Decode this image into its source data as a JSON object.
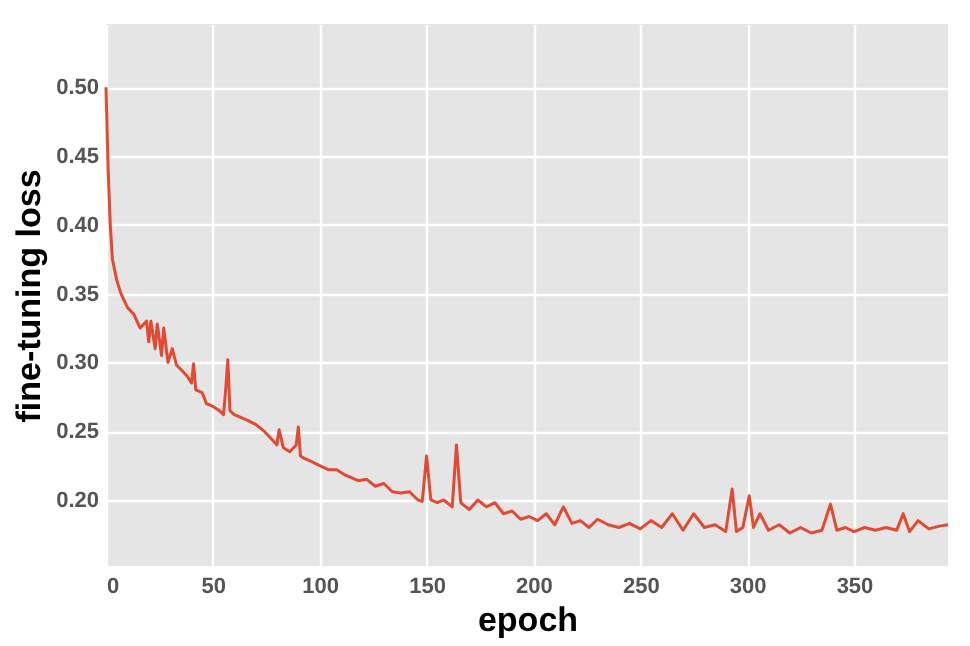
{
  "chart_data": {
    "type": "line",
    "xlabel": "epoch",
    "ylabel": "fine-tuning loss",
    "x": [
      0,
      1,
      2,
      3,
      5,
      7,
      10,
      13,
      16,
      19,
      20,
      21,
      23,
      24,
      26,
      27,
      29,
      31,
      33,
      35,
      38,
      40,
      41,
      42,
      45,
      47,
      50,
      53,
      55,
      56,
      57,
      58,
      60,
      63,
      66,
      70,
      74,
      77,
      80,
      81,
      83,
      86,
      89,
      90,
      91,
      93,
      96,
      100,
      104,
      108,
      112,
      115,
      118,
      122,
      126,
      130,
      134,
      138,
      142,
      146,
      148,
      150,
      152,
      155,
      158,
      162,
      164,
      166,
      170,
      174,
      178,
      182,
      186,
      190,
      194,
      198,
      202,
      206,
      210,
      214,
      218,
      222,
      226,
      230,
      235,
      240,
      245,
      250,
      255,
      260,
      265,
      270,
      275,
      280,
      285,
      290,
      293,
      295,
      298,
      301,
      303,
      306,
      310,
      315,
      320,
      325,
      330,
      335,
      339,
      342,
      346,
      350,
      355,
      360,
      365,
      370,
      373,
      376,
      380,
      385,
      390,
      394
    ],
    "series": [
      {
        "color": "#e24a33",
        "values": [
          0.5,
          0.44,
          0.4,
          0.375,
          0.36,
          0.35,
          0.34,
          0.335,
          0.325,
          0.33,
          0.315,
          0.33,
          0.31,
          0.328,
          0.305,
          0.325,
          0.3,
          0.31,
          0.298,
          0.295,
          0.29,
          0.285,
          0.299,
          0.28,
          0.278,
          0.27,
          0.268,
          0.265,
          0.262,
          0.28,
          0.302,
          0.265,
          0.262,
          0.26,
          0.258,
          0.255,
          0.25,
          0.245,
          0.24,
          0.251,
          0.238,
          0.235,
          0.24,
          0.253,
          0.232,
          0.23,
          0.228,
          0.225,
          0.222,
          0.222,
          0.218,
          0.216,
          0.214,
          0.215,
          0.21,
          0.212,
          0.206,
          0.205,
          0.206,
          0.2,
          0.199,
          0.232,
          0.2,
          0.198,
          0.2,
          0.195,
          0.24,
          0.198,
          0.193,
          0.2,
          0.195,
          0.198,
          0.19,
          0.192,
          0.186,
          0.188,
          0.185,
          0.19,
          0.182,
          0.195,
          0.183,
          0.185,
          0.18,
          0.186,
          0.182,
          0.18,
          0.183,
          0.179,
          0.185,
          0.18,
          0.19,
          0.178,
          0.19,
          0.18,
          0.182,
          0.177,
          0.208,
          0.177,
          0.18,
          0.203,
          0.18,
          0.19,
          0.178,
          0.182,
          0.176,
          0.18,
          0.176,
          0.178,
          0.197,
          0.178,
          0.18,
          0.177,
          0.18,
          0.178,
          0.18,
          0.178,
          0.19,
          0.177,
          0.185,
          0.179,
          0.181,
          0.182
        ]
      }
    ],
    "xlim": [
      0,
      394
    ],
    "xticks": [
      0,
      50,
      100,
      150,
      200,
      250,
      300,
      350
    ],
    "ylim": [
      0.152,
      0.546
    ],
    "yticks": [
      {
        "value": 0.2,
        "label": "0.20"
      },
      {
        "value": 0.25,
        "label": "0.25"
      },
      {
        "value": 0.3,
        "label": "0.30"
      },
      {
        "value": 0.35,
        "label": "0.35"
      },
      {
        "value": 0.4,
        "label": "0.40"
      },
      {
        "value": 0.45,
        "label": "0.45"
      },
      {
        "value": 0.5,
        "label": "0.50"
      }
    ],
    "grid": true,
    "marker": "none",
    "line_style": "solid"
  }
}
